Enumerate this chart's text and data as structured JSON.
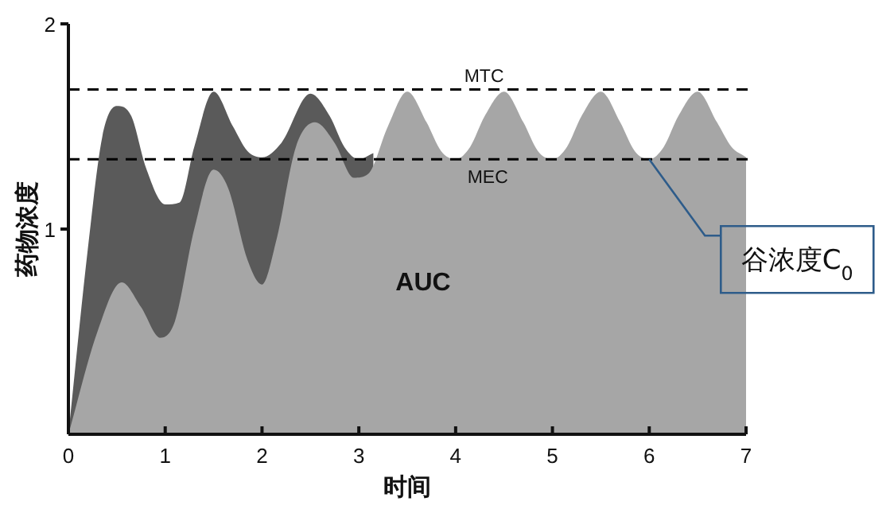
{
  "chart_data": {
    "type": "area",
    "xlabel": "时间",
    "ylabel": "药物浓度",
    "xlim": [
      0,
      7
    ],
    "ylim": [
      0,
      2
    ],
    "xticks": [
      0,
      1,
      2,
      3,
      4,
      5,
      6,
      7
    ],
    "yticks": [
      1,
      2
    ],
    "marker": "none",
    "series": [
      {
        "color": "#5a5a5a",
        "x": [
          0,
          0.2,
          0.35,
          0.5,
          0.65,
          0.8,
          1,
          1.15,
          1.3,
          1.5,
          1.7,
          1.85,
          2,
          2.2,
          2.5,
          2.7,
          2.85,
          3,
          3.15
        ],
        "values": [
          0,
          0.9,
          1.45,
          1.6,
          1.55,
          1.3,
          1.12,
          1.13,
          1.4,
          1.67,
          1.5,
          1.38,
          1.35,
          1.42,
          1.66,
          1.55,
          1.4,
          1.34,
          1.37
        ]
      },
      {
        "color": "#a6a6a6",
        "x": [
          0,
          0.3,
          0.55,
          0.75,
          0.95,
          1.1,
          1.3,
          1.5,
          1.65,
          1.85,
          2,
          2.15,
          2.35,
          2.55,
          2.75,
          2.95,
          3.1,
          3.3,
          3.5,
          3.7,
          3.85,
          4,
          4.15,
          4.3,
          4.5,
          4.7,
          4.85,
          5,
          5.15,
          5.3,
          5.5,
          5.7,
          5.85,
          6,
          6.15,
          6.3,
          6.5,
          6.7,
          6.85,
          7
        ],
        "values": [
          0,
          0.5,
          0.74,
          0.62,
          0.47,
          0.55,
          1.0,
          1.29,
          1.2,
          0.85,
          0.73,
          0.95,
          1.4,
          1.52,
          1.42,
          1.25,
          1.27,
          1.5,
          1.67,
          1.52,
          1.38,
          1.34,
          1.4,
          1.55,
          1.67,
          1.52,
          1.38,
          1.34,
          1.4,
          1.55,
          1.67,
          1.52,
          1.38,
          1.34,
          1.4,
          1.55,
          1.67,
          1.52,
          1.4,
          1.35
        ]
      }
    ],
    "ref_lines": [
      {
        "axis": "y",
        "value": 1.68,
        "label": "MTC",
        "color": "#000000",
        "line_style": "dashed"
      },
      {
        "axis": "y",
        "value": 1.34,
        "label": "MEC",
        "color": "#000000",
        "line_style": "dashed"
      }
    ],
    "annotations": [
      "AUC",
      {
        "text": "谷浓度C$_{0}$",
        "x": 6,
        "y": 1.34
      }
    ]
  }
}
